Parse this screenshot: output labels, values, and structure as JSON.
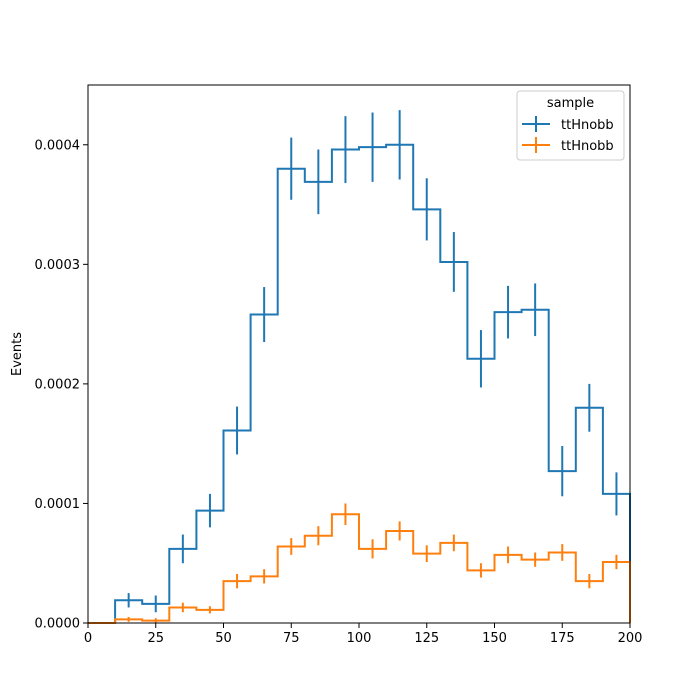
{
  "chart_data": {
    "type": "histogram-step",
    "title": "",
    "xlabel": "",
    "ylabel": "Events",
    "xlim": [
      0,
      200
    ],
    "ylim": [
      0,
      0.00045
    ],
    "x_ticks": [
      0,
      25,
      50,
      75,
      100,
      125,
      150,
      175,
      200
    ],
    "x_tick_labels": [
      "0",
      "25",
      "50",
      "75",
      "100",
      "125",
      "150",
      "175",
      "200"
    ],
    "y_ticks": [
      0,
      0.0001,
      0.0002,
      0.0003,
      0.0004
    ],
    "y_tick_labels": [
      "0.0000",
      "0.0001",
      "0.0002",
      "0.0003",
      "0.0004"
    ],
    "grid": false,
    "legend": {
      "title": "sample",
      "placement": "top-right"
    },
    "bin_edges": [
      0,
      10,
      20,
      30,
      40,
      50,
      60,
      70,
      80,
      90,
      100,
      110,
      120,
      130,
      140,
      150,
      160,
      170,
      180,
      190,
      200
    ],
    "series": [
      {
        "name": "ttHnobb",
        "color": "#1f77b4",
        "values": [
          0,
          1.9e-05,
          1.6e-05,
          6.2e-05,
          9.4e-05,
          0.000161,
          0.000258,
          0.00038,
          0.000369,
          0.000396,
          0.000398,
          0.0004,
          0.000346,
          0.000302,
          0.000221,
          0.00026,
          0.000262,
          0.000127,
          0.00018,
          0.000108
        ],
        "errors": [
          0,
          6e-06,
          7e-06,
          1.2e-05,
          1.4e-05,
          2e-05,
          2.3e-05,
          2.6e-05,
          2.7e-05,
          2.8e-05,
          2.9e-05,
          2.9e-05,
          2.6e-05,
          2.5e-05,
          2.4e-05,
          2.2e-05,
          2.2e-05,
          2.1e-05,
          2e-05,
          1.8e-05
        ]
      },
      {
        "name": "ttHnobb",
        "color": "#ff7f0e",
        "values": [
          0,
          3e-06,
          2e-06,
          1.3e-05,
          1.1e-05,
          3.5e-05,
          3.9e-05,
          6.4e-05,
          7.3e-05,
          9.1e-05,
          6.2e-05,
          7.7e-05,
          5.8e-05,
          6.7e-05,
          4.4e-05,
          5.7e-05,
          5.3e-05,
          5.9e-05,
          3.5e-05,
          5.1e-05
        ],
        "errors": [
          0,
          2e-06,
          2e-06,
          4e-06,
          3e-06,
          6e-06,
          6e-06,
          7e-06,
          8e-06,
          9e-06,
          8e-06,
          8e-06,
          7e-06,
          7e-06,
          6e-06,
          7e-06,
          6e-06,
          7e-06,
          6e-06,
          6e-06
        ]
      }
    ]
  }
}
